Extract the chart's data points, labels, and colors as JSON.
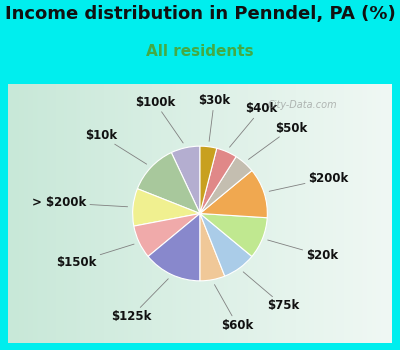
{
  "title": "Income distribution in Penndel, PA (%)",
  "subtitle": "All residents",
  "bg_cyan": "#00EEEE",
  "bg_chart_top_left": "#d4ede4",
  "bg_chart_bottom_right": "#e8f4f0",
  "labels": [
    "$100k",
    "$10k",
    "> $200k",
    "$150k",
    "$125k",
    "$60k",
    "$75k",
    "$20k",
    "$200k",
    "$50k",
    "$40k",
    "$30k"
  ],
  "values": [
    7,
    12,
    9,
    8,
    14,
    6,
    8,
    10,
    12,
    5,
    5,
    4
  ],
  "colors": [
    "#b4aed0",
    "#a8c89c",
    "#f0f090",
    "#f0aaaa",
    "#8888cc",
    "#f0c898",
    "#aacce8",
    "#c0e890",
    "#f0a850",
    "#c4beb0",
    "#e08888",
    "#c8a020"
  ],
  "title_fontsize": 13,
  "subtitle_fontsize": 11,
  "subtitle_color": "#44aa44",
  "label_fontsize": 8.5,
  "startangle": 90
}
